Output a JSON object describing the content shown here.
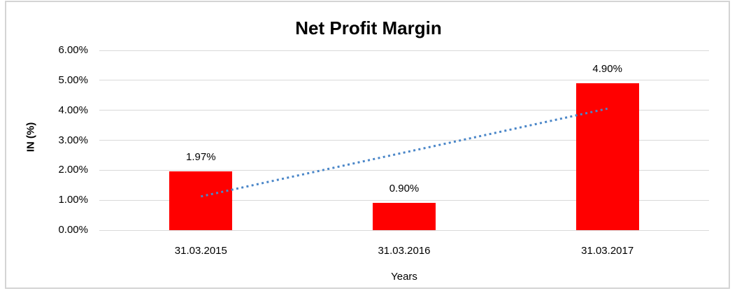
{
  "chart_data": {
    "type": "bar",
    "title": "Net Profit Margin",
    "xlabel": "Years",
    "ylabel": "IN (%)",
    "categories": [
      "31.03.2015",
      "31.03.2016",
      "31.03.2017"
    ],
    "values": [
      1.97,
      0.9,
      4.9
    ],
    "data_labels": [
      "1.97%",
      "0.90%",
      "4.90%"
    ],
    "ylim": [
      0,
      6
    ],
    "yticks": [
      0,
      1,
      2,
      3,
      4,
      5,
      6
    ],
    "ytick_labels": [
      "0.00%",
      "1.00%",
      "2.00%",
      "3.00%",
      "4.00%",
      "5.00%",
      "6.00%"
    ],
    "grid": true,
    "legend": "none",
    "bar_color": "#ff0000",
    "gridline_color": "#d9d9d9",
    "text_color": "#000000",
    "trendline": {
      "type": "linear",
      "style": "dotted",
      "color": "#4a86c8",
      "start_value": 1.125,
      "end_value": 4.055
    }
  }
}
